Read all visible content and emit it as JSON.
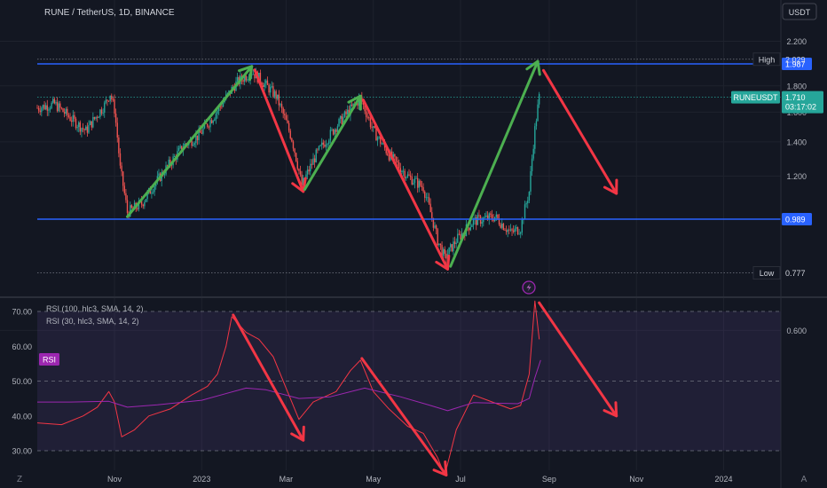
{
  "header": {
    "symbol": "RUNE / TetherUS, 1D, BINANCE",
    "currency_button": "USDT"
  },
  "colors": {
    "background": "#131722",
    "bull": "#26a69a",
    "bear": "#ef5350",
    "level": "#2962ff",
    "arrow_up": "#4caf50",
    "arrow_down": "#f23645",
    "rsi_fast": "#f23645",
    "rsi_slow": "#9c27b0",
    "rsi_band": "#7e57c2",
    "price_badge": "#26a69a"
  },
  "chart_data": [
    {
      "type": "candlestick",
      "title": "RUNE / TetherUS, 1D, BINANCE",
      "ylim": [
        0.55,
        2.22
      ],
      "y_ticks": [
        "2.200",
        "1.800",
        "1.600",
        "1.400",
        "1.200",
        "0.600"
      ],
      "x_ticks": [
        "Nov",
        "2023",
        "Mar",
        "May",
        "Jul",
        "Sep",
        "Nov",
        "2024"
      ],
      "x_tick_dates": [
        "2022-11-01",
        "2023-01-01",
        "2023-03-01",
        "2023-05-01",
        "2023-07-01",
        "2023-09-01",
        "2023-11-01",
        "2024-01-01"
      ],
      "date_range": [
        "2022-09-08",
        "2024-02-10"
      ],
      "close_path": [
        [
          "2022-09-08",
          1.63
        ],
        [
          "2022-09-20",
          1.66
        ],
        [
          "2022-10-02",
          1.55
        ],
        [
          "2022-10-12",
          1.47
        ],
        [
          "2022-10-25",
          1.65
        ],
        [
          "2022-10-29",
          1.74
        ],
        [
          "2022-11-01",
          1.62
        ],
        [
          "2022-11-05",
          1.24
        ],
        [
          "2022-11-10",
          1.02
        ],
        [
          "2022-11-20",
          1.06
        ],
        [
          "2022-12-05",
          1.22
        ],
        [
          "2022-12-20",
          1.38
        ],
        [
          "2022-12-30",
          1.44
        ],
        [
          "2023-01-10",
          1.58
        ],
        [
          "2023-01-25",
          1.82
        ],
        [
          "2023-02-05",
          1.92
        ],
        [
          "2023-02-12",
          1.84
        ],
        [
          "2023-02-22",
          1.72
        ],
        [
          "2023-03-05",
          1.42
        ],
        [
          "2023-03-12",
          1.15
        ],
        [
          "2023-03-22",
          1.32
        ],
        [
          "2023-04-05",
          1.5
        ],
        [
          "2023-04-15",
          1.62
        ],
        [
          "2023-04-22",
          1.7
        ],
        [
          "2023-05-01",
          1.47
        ],
        [
          "2023-05-12",
          1.32
        ],
        [
          "2023-05-25",
          1.2
        ],
        [
          "2023-06-05",
          1.14
        ],
        [
          "2023-06-15",
          0.9
        ],
        [
          "2023-06-20",
          0.83
        ],
        [
          "2023-06-28",
          0.9
        ],
        [
          "2023-07-10",
          0.98
        ],
        [
          "2023-07-25",
          1.0
        ],
        [
          "2023-08-05",
          0.93
        ],
        [
          "2023-08-12",
          0.95
        ],
        [
          "2023-08-18",
          1.12
        ],
        [
          "2023-08-22",
          1.48
        ],
        [
          "2023-08-25",
          1.71
        ]
      ],
      "levels": [
        {
          "name": "resistance",
          "value": 1.987,
          "label": "1.987"
        },
        {
          "name": "support",
          "value": 0.989,
          "label": "0.989"
        }
      ],
      "markers": [
        {
          "kind": "High",
          "value": 2.029,
          "label": "2.029"
        },
        {
          "kind": "Low",
          "value": 0.777,
          "label": "0.777"
        }
      ],
      "last_price": {
        "symbol": "RUNEUSDT",
        "value": 1.71,
        "label": "1.710",
        "countdown": "03:17:02"
      },
      "annotations": [
        {
          "kind": "arrow-up",
          "from": [
            "2022-11-10",
            1.0
          ],
          "to": [
            "2023-02-05",
            1.965
          ]
        },
        {
          "kind": "arrow-down",
          "from": [
            "2023-02-07",
            1.935
          ],
          "to": [
            "2023-03-13",
            1.12
          ]
        },
        {
          "kind": "arrow-up",
          "from": [
            "2023-03-14",
            1.13
          ],
          "to": [
            "2023-04-22",
            1.72
          ]
        },
        {
          "kind": "arrow-down",
          "from": [
            "2023-04-24",
            1.69
          ],
          "to": [
            "2023-06-22",
            0.79
          ]
        },
        {
          "kind": "arrow-up",
          "from": [
            "2023-06-24",
            0.8
          ],
          "to": [
            "2023-08-24",
            2.01
          ]
        },
        {
          "kind": "arrow-down",
          "from": [
            "2023-08-28",
            1.93
          ],
          "to": [
            "2023-10-18",
            1.11
          ]
        }
      ]
    },
    {
      "type": "line",
      "title": "",
      "ylim": [
        27,
        73
      ],
      "y_ticks": [
        "70.00",
        "60.00",
        "50.00",
        "40.00",
        "30.00"
      ],
      "band": [
        30,
        70
      ],
      "midline": 50,
      "indicator_badge": "RSI",
      "series": [
        {
          "name": "RSI (100, hlc3, SMA, 14, 2)",
          "role": "fast",
          "points": [
            [
              "2022-09-08",
              38
            ],
            [
              "2022-09-25",
              37.5
            ],
            [
              "2022-10-10",
              40
            ],
            [
              "2022-10-20",
              42.5
            ],
            [
              "2022-10-28",
              47
            ],
            [
              "2022-11-01",
              44
            ],
            [
              "2022-11-06",
              34
            ],
            [
              "2022-11-15",
              36
            ],
            [
              "2022-11-25",
              40
            ],
            [
              "2022-12-10",
              42
            ],
            [
              "2022-12-25",
              46
            ],
            [
              "2023-01-05",
              48.5
            ],
            [
              "2023-01-12",
              52
            ],
            [
              "2023-01-18",
              60
            ],
            [
              "2023-01-22",
              68.5
            ],
            [
              "2023-02-01",
              64
            ],
            [
              "2023-02-10",
              62
            ],
            [
              "2023-02-20",
              57
            ],
            [
              "2023-03-01",
              48
            ],
            [
              "2023-03-10",
              39
            ],
            [
              "2023-03-20",
              44
            ],
            [
              "2023-04-05",
              47
            ],
            [
              "2023-04-15",
              53
            ],
            [
              "2023-04-22",
              56
            ],
            [
              "2023-05-01",
              47
            ],
            [
              "2023-05-12",
              42
            ],
            [
              "2023-05-25",
              37
            ],
            [
              "2023-06-05",
              35
            ],
            [
              "2023-06-15",
              28
            ],
            [
              "2023-06-20",
              23
            ],
            [
              "2023-06-28",
              36
            ],
            [
              "2023-07-10",
              46
            ],
            [
              "2023-07-20",
              44.5
            ],
            [
              "2023-08-05",
              42
            ],
            [
              "2023-08-12",
              43
            ],
            [
              "2023-08-18",
              52
            ],
            [
              "2023-08-22",
              73
            ],
            [
              "2023-08-25",
              62
            ]
          ]
        },
        {
          "name": "RSI (30, hlc3, SMA, 14, 2)",
          "role": "slow",
          "points": [
            [
              "2022-09-08",
              44
            ],
            [
              "2022-10-01",
              44
            ],
            [
              "2022-10-28",
              44.2
            ],
            [
              "2022-11-10",
              42.5
            ],
            [
              "2022-12-01",
              43.2
            ],
            [
              "2023-01-01",
              44.5
            ],
            [
              "2023-02-01",
              48
            ],
            [
              "2023-02-15",
              47.5
            ],
            [
              "2023-03-10",
              45
            ],
            [
              "2023-04-01",
              45.5
            ],
            [
              "2023-04-25",
              48
            ],
            [
              "2023-05-20",
              45.5
            ],
            [
              "2023-06-10",
              43
            ],
            [
              "2023-06-22",
              41.5
            ],
            [
              "2023-07-10",
              43.8
            ],
            [
              "2023-08-10",
              43.5
            ],
            [
              "2023-08-18",
              45
            ],
            [
              "2023-08-22",
              51
            ],
            [
              "2023-08-26",
              56
            ]
          ]
        }
      ],
      "annotations": [
        {
          "kind": "arrow-down",
          "from": [
            "2023-01-23",
            69
          ],
          "to": [
            "2023-03-13",
            33
          ]
        },
        {
          "kind": "arrow-down",
          "from": [
            "2023-04-23",
            56.5
          ],
          "to": [
            "2023-06-21",
            23
          ]
        },
        {
          "kind": "arrow-down",
          "from": [
            "2023-08-25",
            72.5
          ],
          "to": [
            "2023-10-18",
            40
          ]
        }
      ]
    }
  ],
  "footer": {
    "left_glyph": "Z",
    "right_glyph": "A"
  }
}
